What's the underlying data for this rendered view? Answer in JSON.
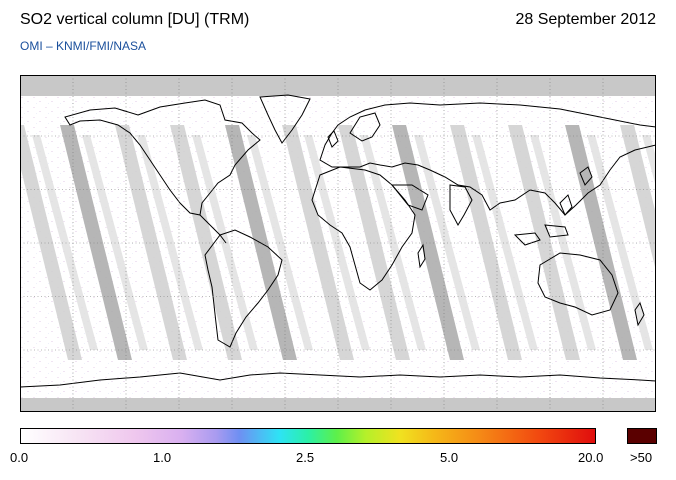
{
  "header": {
    "title": "SO2 vertical column [DU] (TRM)",
    "date": "28 September 2012",
    "credit": "OMI  –  KNMI/FMI/NASA"
  },
  "map": {
    "projection": "equirectangular",
    "lon_ticks": [
      -150,
      -120,
      -90,
      -60,
      -30,
      0,
      30,
      60,
      90,
      120,
      150
    ],
    "lat_ticks": [
      60,
      30,
      0,
      -30,
      -60
    ],
    "colors": {
      "land_outline": "#000000",
      "gap_swath": "#c8c8c8",
      "polar_night": "#c8c8c8"
    }
  },
  "colorbar": {
    "labels": [
      "0.0",
      "1.0",
      "2.5",
      "5.0",
      "20.0",
      ">50"
    ],
    "tick_values": [
      "0.0",
      "1.0",
      "2.5",
      "5.0",
      "20.0"
    ],
    "over_label": ">50",
    "over_color": "#5a0000"
  }
}
